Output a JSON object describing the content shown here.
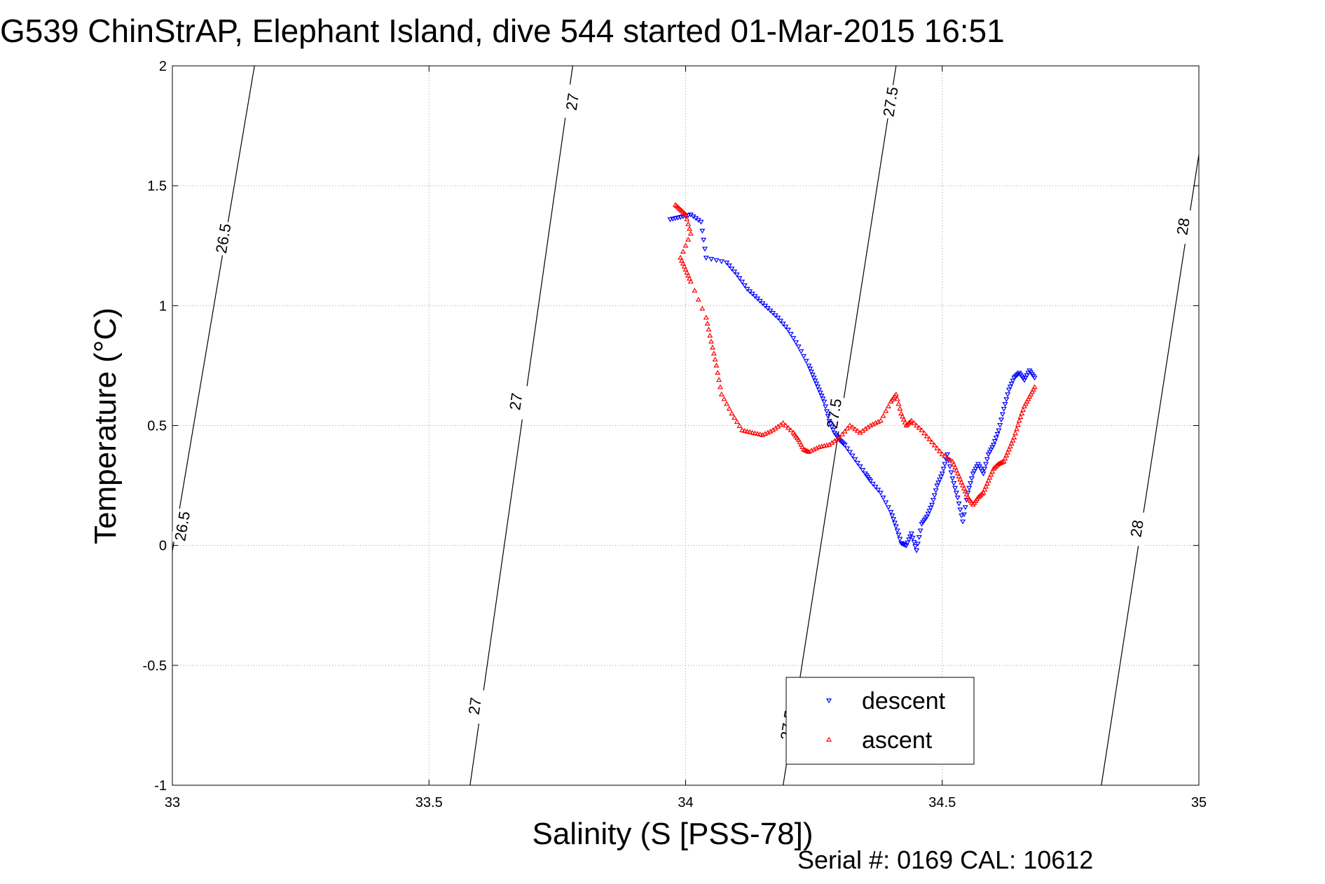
{
  "chart_data": {
    "type": "scatter",
    "title": "G539 ChinStrAP, Elephant Island, dive 544 started 01-Mar-2015 16:51",
    "xlabel": "Salinity (S [PSS-78])",
    "ylabel": "Temperature (°C)",
    "xlim": [
      33,
      35
    ],
    "ylim": [
      -1,
      2
    ],
    "x_ticks": [
      "33",
      "33.5",
      "34",
      "34.5",
      "35"
    ],
    "y_ticks": [
      "-1",
      "-0.5",
      "0",
      "0.5",
      "1",
      "1.5",
      "2"
    ],
    "grid": true,
    "legend_placement": "bottom-center",
    "footer": "Serial #: 0169 CAL: 10612",
    "contours": [
      {
        "label": "26.5",
        "points": [
          [
            32.99,
            -0.15
          ],
          [
            33.16,
            2.0
          ]
        ],
        "label_positions": [
          [
            33.1,
            1.28
          ],
          [
            33.02,
            0.08
          ]
        ]
      },
      {
        "label": "27",
        "points": [
          [
            33.58,
            -1.0
          ],
          [
            33.78,
            2.0
          ]
        ],
        "label_positions": [
          [
            33.78,
            1.85
          ],
          [
            33.67,
            0.6
          ],
          [
            33.59,
            -0.67
          ]
        ]
      },
      {
        "label": "27.5",
        "points": [
          [
            34.19,
            -1.0
          ],
          [
            34.41,
            2.0
          ]
        ],
        "label_positions": [
          [
            34.4,
            1.85
          ],
          [
            34.29,
            0.55
          ],
          [
            34.2,
            -0.75
          ]
        ]
      },
      {
        "label": "28",
        "points": [
          [
            34.81,
            -1.0
          ],
          [
            35.0,
            1.63
          ]
        ],
        "label_positions": [
          [
            34.97,
            1.33
          ],
          [
            34.88,
            0.07
          ]
        ]
      }
    ],
    "series": [
      {
        "name": "descent",
        "color": "#0000ff",
        "marker": "triangle-down",
        "x": [
          33.97,
          33.99,
          34.01,
          34.03,
          34.04,
          34.08,
          34.1,
          34.12,
          34.14,
          34.16,
          34.18,
          34.2,
          34.22,
          34.24,
          34.25,
          34.26,
          34.27,
          34.28,
          34.29,
          34.3,
          34.31,
          34.33,
          34.35,
          34.36,
          34.38,
          34.4,
          34.41,
          34.42,
          34.43,
          34.44,
          34.45,
          34.46,
          34.47,
          34.48,
          34.49,
          34.5,
          34.51,
          34.52,
          34.53,
          34.54,
          34.55,
          34.56,
          34.57,
          34.58,
          34.59,
          34.6,
          34.61,
          34.62,
          34.63,
          34.64,
          34.65,
          34.66,
          34.67,
          34.68
        ],
        "y": [
          1.36,
          1.37,
          1.38,
          1.35,
          1.2,
          1.18,
          1.13,
          1.07,
          1.03,
          0.99,
          0.95,
          0.9,
          0.83,
          0.75,
          0.7,
          0.65,
          0.6,
          0.52,
          0.47,
          0.44,
          0.42,
          0.36,
          0.3,
          0.27,
          0.22,
          0.14,
          0.08,
          0.01,
          0.0,
          0.05,
          -0.02,
          0.09,
          0.12,
          0.17,
          0.25,
          0.3,
          0.38,
          0.28,
          0.2,
          0.1,
          0.22,
          0.3,
          0.34,
          0.3,
          0.38,
          0.42,
          0.48,
          0.57,
          0.65,
          0.7,
          0.72,
          0.69,
          0.73,
          0.7
        ]
      },
      {
        "name": "ascent",
        "color": "#ff0000",
        "marker": "triangle-up",
        "x": [
          33.98,
          33.99,
          34.0,
          34.01,
          33.99,
          34.0,
          34.01,
          34.04,
          34.05,
          34.06,
          34.07,
          34.09,
          34.11,
          34.13,
          34.15,
          34.17,
          34.19,
          34.21,
          34.22,
          34.23,
          34.24,
          34.26,
          34.28,
          34.3,
          34.32,
          34.34,
          34.36,
          34.38,
          34.4,
          34.41,
          34.42,
          34.43,
          34.44,
          34.46,
          34.48,
          34.5,
          34.52,
          34.53,
          34.54,
          34.55,
          34.56,
          34.57,
          34.58,
          34.59,
          34.6,
          34.61,
          34.62,
          34.63,
          34.64,
          34.65,
          34.66,
          34.67,
          34.68
        ],
        "y": [
          1.42,
          1.4,
          1.38,
          1.3,
          1.2,
          1.15,
          1.1,
          0.95,
          0.85,
          0.75,
          0.63,
          0.55,
          0.48,
          0.47,
          0.46,
          0.48,
          0.51,
          0.47,
          0.44,
          0.4,
          0.39,
          0.41,
          0.42,
          0.45,
          0.5,
          0.47,
          0.5,
          0.52,
          0.6,
          0.63,
          0.55,
          0.5,
          0.52,
          0.48,
          0.43,
          0.38,
          0.35,
          0.3,
          0.25,
          0.2,
          0.17,
          0.2,
          0.22,
          0.27,
          0.32,
          0.34,
          0.35,
          0.4,
          0.45,
          0.52,
          0.58,
          0.62,
          0.66
        ]
      }
    ]
  }
}
